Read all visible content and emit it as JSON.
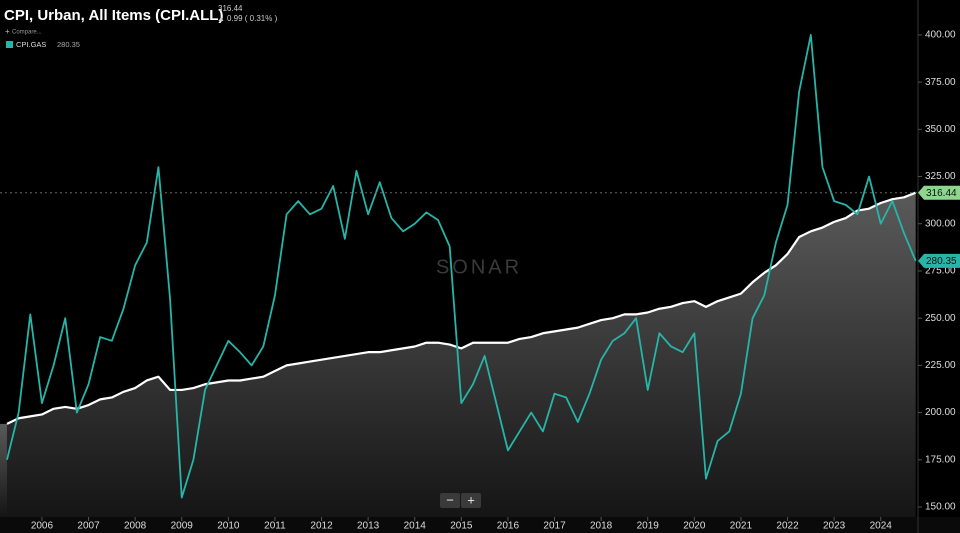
{
  "chart_data": {
    "type": "line",
    "change": "0.99 ( 0.31% )",
    "compare": "Compare...",
    "watermark": "SONAR",
    "zoom_out": "−",
    "zoom_in": "+",
    "xlim": [
      2005.1,
      2024.8
    ],
    "xticks": [
      2006,
      2007,
      2008,
      2009,
      2010,
      2011,
      2012,
      2013,
      2014,
      2015,
      2016,
      2017,
      2018,
      2019,
      2020,
      2021,
      2022,
      2023,
      2024
    ],
    "ylim": [
      144.7,
      418.5
    ],
    "yticks": [
      {
        "value": 150,
        "label": "150.00"
      },
      {
        "value": 175,
        "label": "175.00"
      },
      {
        "value": 200,
        "label": "200.00"
      },
      {
        "value": 225,
        "label": "225.00"
      },
      {
        "value": 250,
        "label": "250.00"
      },
      {
        "value": 275,
        "label": "275.00"
      },
      {
        "value": 300,
        "label": "300.00"
      },
      {
        "value": 325,
        "label": "325.00"
      },
      {
        "value": 350,
        "label": "350.00"
      },
      {
        "value": 375,
        "label": "375.00"
      },
      {
        "value": 400,
        "label": "400.00"
      }
    ],
    "x": [
      2005.25,
      2005.5,
      2005.75,
      2006,
      2006.25,
      2006.5,
      2006.75,
      2007,
      2007.25,
      2007.5,
      2007.75,
      2008,
      2008.25,
      2008.5,
      2008.75,
      2009,
      2009.25,
      2009.5,
      2009.75,
      2010,
      2010.25,
      2010.5,
      2010.75,
      2011,
      2011.25,
      2011.5,
      2011.75,
      2012,
      2012.25,
      2012.5,
      2012.75,
      2013,
      2013.25,
      2013.5,
      2013.75,
      2014,
      2014.25,
      2014.5,
      2014.75,
      2015,
      2015.25,
      2015.5,
      2015.75,
      2016,
      2016.25,
      2016.5,
      2016.75,
      2017,
      2017.25,
      2017.5,
      2017.75,
      2018,
      2018.25,
      2018.5,
      2018.75,
      2019,
      2019.25,
      2019.5,
      2019.75,
      2020,
      2020.25,
      2020.5,
      2020.75,
      2021,
      2021.25,
      2021.5,
      2021.75,
      2022,
      2022.25,
      2022.5,
      2022.75,
      2023,
      2023.25,
      2023.5,
      2023.75,
      2024,
      2024.25,
      2024.5,
      2024.75
    ],
    "series": [
      {
        "name": "CPI, Urban, All Items (CPI.ALL)",
        "color": "#ffffff",
        "area": true,
        "values": [
          194,
          197,
          198,
          199,
          202,
          203,
          202,
          204,
          207,
          208,
          211,
          213,
          217,
          219,
          212,
          212,
          213,
          215,
          216,
          217,
          217,
          218,
          219,
          222,
          225,
          226,
          227,
          228,
          229,
          230,
          231,
          232,
          232,
          233,
          234,
          235,
          237,
          237,
          236,
          234,
          237,
          237,
          237,
          237,
          239,
          240,
          242,
          243,
          244,
          245,
          247,
          249,
          250,
          252,
          252,
          253,
          255,
          256,
          258,
          259,
          256,
          259,
          261,
          263,
          269,
          274,
          278,
          284,
          293,
          296,
          298,
          301,
          303,
          307,
          308,
          311,
          313,
          314,
          316.44
        ]
      },
      {
        "name": "CPI.GAS",
        "color": "#26b5a8",
        "values": [
          175,
          200,
          252,
          205,
          225,
          250,
          200,
          215,
          240,
          238,
          255,
          278,
          290,
          330,
          260,
          155,
          175,
          212,
          225,
          238,
          232,
          225,
          235,
          262,
          305,
          312,
          305,
          308,
          320,
          292,
          328,
          305,
          322,
          303,
          296,
          300,
          306,
          302,
          288,
          205,
          215,
          230,
          205,
          180,
          190,
          200,
          190,
          210,
          208,
          195,
          210,
          228,
          238,
          242,
          250,
          212,
          242,
          235,
          232,
          242,
          165,
          185,
          190,
          210,
          250,
          262,
          290,
          310,
          370,
          400,
          330,
          312,
          310,
          305,
          325,
          300,
          312,
          295,
          280.35
        ]
      }
    ]
  }
}
